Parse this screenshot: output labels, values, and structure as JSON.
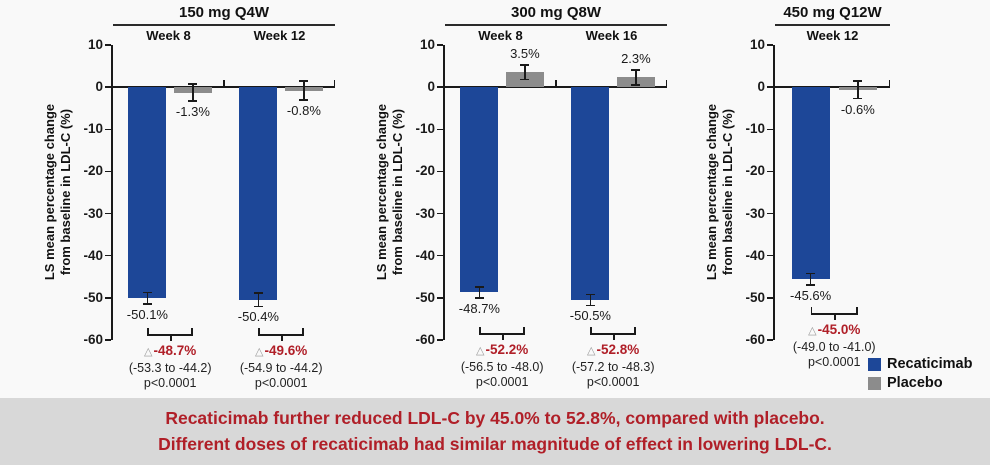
{
  "figure": {
    "colors": {
      "recaticimab": "#1d4798",
      "placebo": "#8c8c8c",
      "delta_red": "#b01f28",
      "axis": "#1a1a1a",
      "banner_bg": "#d8d8d8",
      "banner_text": "#b01f28",
      "background": "#f9f9f9"
    }
  },
  "chart_data": {
    "type": "bar",
    "ylabel": "LS mean percentage change\nfrom baseline in LDL-C (%)",
    "ylim": [
      -60,
      10
    ],
    "yticks": [
      10,
      0,
      -10,
      -20,
      -30,
      -40,
      -50,
      -60
    ],
    "grid": false,
    "legend_position": "bottom-right",
    "legend": [
      {
        "label": "Recaticimab",
        "color_key": "recaticimab"
      },
      {
        "label": "Placebo",
        "color_key": "placebo"
      }
    ],
    "panels": [
      {
        "title": "150 mg Q4W",
        "groups": [
          {
            "week": "Week 8",
            "series": {
              "recaticimab": -50.1,
              "placebo": -1.3
            },
            "labels": {
              "recaticimab": "-50.1%",
              "placebo": "-1.3%"
            },
            "errors": {
              "recaticimab": 1.4,
              "placebo": 2.0
            },
            "comparison": {
              "delta": "-48.7%",
              "ci": "(-53.3 to -44.2)",
              "p": "p<0.0001"
            }
          },
          {
            "week": "Week 12",
            "series": {
              "recaticimab": -50.4,
              "placebo": -0.8
            },
            "labels": {
              "recaticimab": "-50.4%",
              "placebo": "-0.8%"
            },
            "errors": {
              "recaticimab": 1.6,
              "placebo": 2.2
            },
            "comparison": {
              "delta": "-49.6%",
              "ci": "(-54.9 to -44.2)",
              "p": "p<0.0001"
            }
          }
        ]
      },
      {
        "title": "300 mg Q8W",
        "groups": [
          {
            "week": "Week 8",
            "series": {
              "recaticimab": -48.7,
              "placebo": 3.5
            },
            "labels": {
              "recaticimab": "-48.7%",
              "placebo": "3.5%"
            },
            "errors": {
              "recaticimab": 1.3,
              "placebo": 1.7
            },
            "comparison": {
              "delta": "-52.2%",
              "ci": "(-56.5 to -48.0)",
              "p": "p<0.0001"
            }
          },
          {
            "week": "Week 16",
            "series": {
              "recaticimab": -50.5,
              "placebo": 2.3
            },
            "labels": {
              "recaticimab": "-50.5%",
              "placebo": "2.3%"
            },
            "errors": {
              "recaticimab": 1.3,
              "placebo": 1.8
            },
            "comparison": {
              "delta": "-52.8%",
              "ci": "(-57.2 to -48.3)",
              "p": "p<0.0001"
            }
          }
        ]
      },
      {
        "title": "450 mg Q12W",
        "groups": [
          {
            "week": "Week 12",
            "series": {
              "recaticimab": -45.6,
              "placebo": -0.6
            },
            "labels": {
              "recaticimab": "-45.6%",
              "placebo": "-0.6%"
            },
            "errors": {
              "recaticimab": 1.4,
              "placebo": 2.1
            },
            "comparison": {
              "delta": "-45.0%",
              "ci": "(-49.0 to -41.0)",
              "p": "p<0.0001"
            }
          }
        ]
      }
    ]
  },
  "banner": {
    "line1": "Recaticimab further reduced LDL-C by 45.0% to 52.8%, compared with placebo.",
    "line2": "Different doses of recaticimab had similar magnitude of effect in lowering LDL-C."
  }
}
